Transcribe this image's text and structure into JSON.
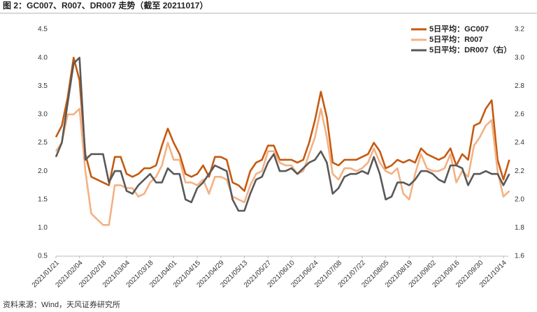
{
  "chart_data": {
    "type": "line",
    "title": "图 2：GC007、R007、DR007 走势（截至 20211017）",
    "source": "资料来源：Wind，天风证券研究所",
    "categories": [
      "2021/01/21",
      null,
      null,
      null,
      "2021/02/04",
      null,
      null,
      null,
      "2021/02/18",
      null,
      null,
      null,
      "2021/03/04",
      null,
      null,
      null,
      "2021/03/18",
      null,
      null,
      null,
      "2021/04/01",
      null,
      null,
      null,
      "2021/04/15",
      null,
      null,
      null,
      "2021/04/29",
      null,
      null,
      null,
      "2021/05/13",
      null,
      null,
      null,
      "2021/05/27",
      null,
      null,
      null,
      "2021/06/10",
      null,
      null,
      null,
      "2021/06/24",
      null,
      null,
      null,
      "2021/07/08",
      null,
      null,
      null,
      "2021/07/22",
      null,
      null,
      null,
      "2021/08/05",
      null,
      null,
      null,
      "2021/08/19",
      null,
      null,
      null,
      "2021/09/02",
      null,
      null,
      null,
      "2021/09/16",
      null,
      null,
      null,
      "2021/09/30",
      null,
      null,
      null,
      "2021/10/14",
      null
    ],
    "series": [
      {
        "name": "5日平均：GC007",
        "color": "#c55a11",
        "values": [
          2.6,
          2.8,
          3.3,
          4.0,
          3.6,
          2.3,
          1.9,
          1.85,
          1.8,
          1.75,
          2.25,
          2.25,
          1.95,
          1.9,
          1.95,
          2.05,
          2.05,
          2.1,
          2.45,
          2.75,
          2.5,
          2.3,
          1.95,
          1.9,
          1.95,
          2.1,
          1.9,
          2.25,
          2.25,
          2.2,
          1.8,
          1.75,
          1.65,
          2.0,
          2.15,
          2.2,
          2.45,
          2.45,
          2.2,
          2.2,
          2.2,
          2.15,
          2.2,
          2.5,
          2.9,
          3.4,
          2.95,
          2.15,
          2.1,
          2.2,
          2.2,
          2.2,
          2.25,
          2.3,
          2.5,
          2.35,
          2.05,
          2.1,
          2.2,
          2.15,
          2.2,
          2.15,
          2.4,
          2.3,
          2.25,
          2.2,
          2.25,
          2.4,
          2.1,
          2.3,
          2.2,
          2.8,
          2.85,
          3.1,
          3.25,
          2.2,
          1.85,
          2.2
        ]
      },
      {
        "name": "5日平均：R007",
        "color": "#f4b183",
        "values": [
          2.35,
          2.5,
          3.0,
          3.0,
          3.1,
          2.0,
          1.25,
          1.15,
          1.05,
          1.05,
          1.75,
          1.75,
          1.7,
          1.7,
          1.55,
          1.6,
          1.8,
          1.9,
          2.1,
          2.5,
          2.2,
          2.2,
          1.8,
          1.8,
          1.75,
          1.85,
          1.6,
          1.9,
          1.9,
          1.85,
          1.55,
          1.5,
          1.45,
          1.75,
          1.95,
          2.0,
          2.35,
          2.35,
          2.15,
          2.1,
          2.1,
          1.95,
          2.0,
          2.3,
          2.6,
          3.1,
          2.6,
          1.95,
          1.85,
          2.05,
          2.05,
          2.0,
          2.05,
          2.15,
          2.4,
          2.15,
          2.0,
          1.95,
          2.05,
          1.6,
          1.5,
          1.95,
          2.3,
          2.05,
          2.0,
          2.0,
          2.05,
          2.3,
          1.8,
          2.0,
          1.9,
          2.45,
          2.6,
          2.8,
          2.9,
          2.0,
          1.55,
          1.65
        ]
      },
      {
        "name": "5日平均：DR007（右）",
        "color": "#595959",
        "axis": "y2",
        "values": [
          2.3,
          2.4,
          2.68,
          2.96,
          3.0,
          2.28,
          2.32,
          2.32,
          2.32,
          2.12,
          2.2,
          2.2,
          2.06,
          2.04,
          2.1,
          2.14,
          2.18,
          2.12,
          2.12,
          2.22,
          2.18,
          2.18,
          2.0,
          1.98,
          2.08,
          2.12,
          2.18,
          2.24,
          2.22,
          2.2,
          2.0,
          1.92,
          1.92,
          2.04,
          2.14,
          2.16,
          2.26,
          2.32,
          2.2,
          2.2,
          2.22,
          2.18,
          2.22,
          2.26,
          2.28,
          2.34,
          2.26,
          2.04,
          2.08,
          2.16,
          2.18,
          2.18,
          2.2,
          2.18,
          2.3,
          2.18,
          2.0,
          2.02,
          2.12,
          2.12,
          2.1,
          2.14,
          2.2,
          2.2,
          2.18,
          2.14,
          2.12,
          2.24,
          2.24,
          2.22,
          2.1,
          2.18,
          2.18,
          2.2,
          2.18,
          2.18,
          2.1,
          2.18
        ]
      }
    ],
    "ylim": [
      0.5,
      4.5
    ],
    "yticks": [
      0.5,
      {
        "value": 1,
        "label": "1.0"
      },
      1.5,
      {
        "value": 2,
        "label": "2.0"
      },
      2.5,
      {
        "value": 3,
        "label": "3.0"
      },
      3.5,
      {
        "value": 4,
        "label": "4.0"
      },
      4.5
    ],
    "y2lim": [
      1.6,
      3.2
    ],
    "y2ticks": [
      1.6,
      1.8,
      {
        "value": 2,
        "label": "2.0"
      },
      2.2,
      2.4,
      2.6,
      2.8,
      {
        "value": 3,
        "label": "3.0"
      },
      3.2
    ],
    "grid": false,
    "legend": "upper right"
  }
}
